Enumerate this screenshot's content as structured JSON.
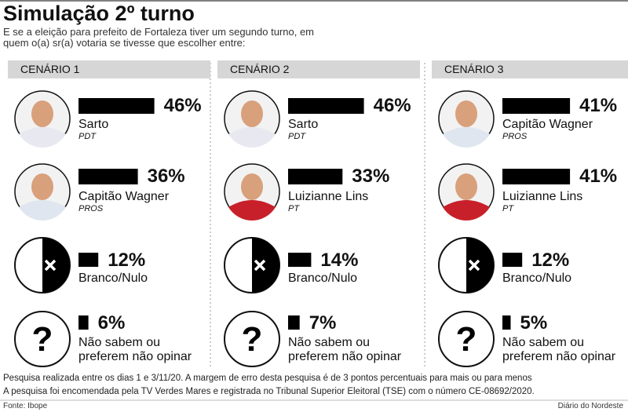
{
  "header": {
    "title": "Simulação 2º turno",
    "subtitle": "E se a eleição para prefeito de Fortaleza tiver um segundo turno, em quem o(a) sr(a) votaria se tivesse que escolher entre:"
  },
  "chart_data": [
    {
      "type": "bar",
      "title": "CENÁRIO 1",
      "categories": [
        "Sarto",
        "Capitão Wagner",
        "Branco/Nulo",
        "Não sabem ou preferem não opinar"
      ],
      "parties": [
        "PDT",
        "PROS",
        null,
        null
      ],
      "values": [
        46,
        36,
        12,
        6
      ],
      "value_labels": [
        "46%",
        "36%",
        "12%",
        "6%"
      ],
      "color": "#000000"
    },
    {
      "type": "bar",
      "title": "CENÁRIO 2",
      "categories": [
        "Sarto",
        "Luizianne Lins",
        "Branco/Nulo",
        "Não sabem ou preferem não opinar"
      ],
      "parties": [
        "PDT",
        "PT",
        null,
        null
      ],
      "values": [
        46,
        33,
        14,
        7
      ],
      "value_labels": [
        "46%",
        "33%",
        "14%",
        "7%"
      ],
      "color": "#000000"
    },
    {
      "type": "bar",
      "title": "CENÁRIO 3",
      "categories": [
        "Capitão Wagner",
        "Luizianne Lins",
        "Branco/Nulo",
        "Não sabem ou preferem não opinar"
      ],
      "parties": [
        "PROS",
        "PT",
        null,
        null
      ],
      "values": [
        41,
        41,
        12,
        5
      ],
      "value_labels": [
        "41%",
        "41%",
        "12%",
        "5%"
      ],
      "color": "#000000"
    }
  ],
  "footer": {
    "notes": [
      "Pesquisa realizada entre os dias 1 e 3/11/20. A margem de erro desta pesquisa é de 3 pontos percentuais para mais ou para menos",
      "A pesquisa foi encomendada pela TV Verdes Mares e registrada no Tribunal Superior Eleitoral (TSE) com o número CE-08692/2020."
    ],
    "source": "Fonte: Ibope",
    "credit": "Diário do Nordeste"
  }
}
